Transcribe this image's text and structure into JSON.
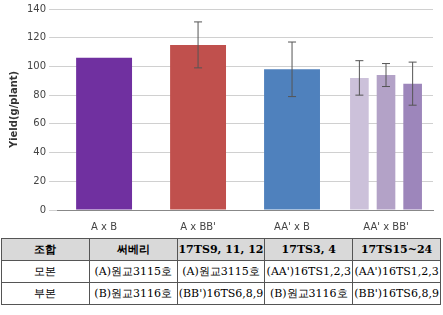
{
  "chart_data": {
    "type": "bar",
    "y_label": "Yield(g/plant)",
    "categories": [
      "A x B",
      "A x BB'",
      "AA' x B",
      "AA' x BB'"
    ],
    "series": [
      {
        "colors": [
          "#7030a0",
          "#c0504d",
          "#4f81bd",
          "#ccc1da"
        ],
        "values": [
          106,
          115,
          98,
          92
        ],
        "errors": [
          null,
          16,
          19,
          12
        ]
      },
      {
        "color": "#b3a2c7",
        "values": [
          null,
          null,
          null,
          94
        ],
        "errors": [
          null,
          null,
          null,
          8
        ]
      },
      {
        "color": "#9d86bb",
        "values": [
          null,
          null,
          null,
          88
        ],
        "errors": [
          null,
          null,
          null,
          15
        ]
      }
    ],
    "ylim": [
      0,
      140
    ],
    "yticks": [
      0,
      20,
      40,
      60,
      80,
      100,
      120,
      140
    ],
    "grid": true
  },
  "table": {
    "header": [
      "조합",
      "써베리",
      "17TS9, 11, 12",
      "17TS3, 4",
      "17TS15~24"
    ],
    "rows": [
      [
        "모본",
        "(A)원교3115호",
        "(A)원교3115호",
        "(AA')16TS1,2,3",
        "(AA')16TS1,2,3"
      ],
      [
        "부본",
        "(B)원교3116호",
        "(BB')16TS6,8,9",
        "(B)원교3116호",
        "(BB')16TS6,8,9"
      ]
    ]
  }
}
